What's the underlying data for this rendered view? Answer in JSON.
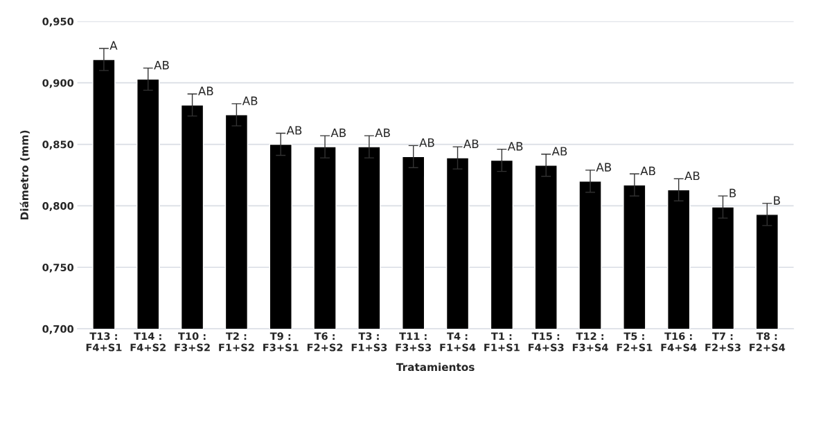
{
  "chart_data": {
    "type": "bar",
    "xlabel": "Tratamientos",
    "ylabel": "Diámetro (mm)",
    "categories": [
      "T13 :\nF4+S1",
      "T14 :\nF4+S2",
      "T10 :\nF3+S2",
      "T2 :\nF1+S2",
      "T9 :\nF3+S1",
      "T6 :\nF2+S2",
      "T3 :\nF1+S3",
      "T11 :\nF3+S3",
      "T4 :\nF1+S4",
      "T1 :\nF1+S1",
      "T15 :\nF4+S3",
      "T12 :\nF3+S4",
      "T5 :\nF2+S1",
      "T16 :\nF4+S4",
      "T7 :\nF2+S3",
      "T8 :\nF2+S4"
    ],
    "values": [
      0.919,
      0.903,
      0.882,
      0.874,
      0.85,
      0.848,
      0.848,
      0.84,
      0.839,
      0.837,
      0.833,
      0.82,
      0.817,
      0.813,
      0.799,
      0.793
    ],
    "errors": [
      0.009,
      0.009,
      0.009,
      0.009,
      0.009,
      0.009,
      0.009,
      0.009,
      0.009,
      0.009,
      0.009,
      0.009,
      0.009,
      0.009,
      0.009,
      0.009
    ],
    "value_labels": [
      "A",
      "AB",
      "AB",
      "AB",
      "AB",
      "AB",
      "AB",
      "AB",
      "AB",
      "AB",
      "AB",
      "AB",
      "AB",
      "AB",
      "B",
      "B"
    ],
    "color": "#000000",
    "ylim": [
      0.7,
      0.95
    ],
    "yticks": [
      {
        "value": 0.7,
        "label": "0,700"
      },
      {
        "value": 0.75,
        "label": "0,750"
      },
      {
        "value": 0.8,
        "label": "0,800"
      },
      {
        "value": 0.85,
        "label": "0,850"
      },
      {
        "value": 0.9,
        "label": "0,900"
      },
      {
        "value": 0.95,
        "label": "0,950"
      }
    ],
    "grid": "y",
    "legend": false
  }
}
